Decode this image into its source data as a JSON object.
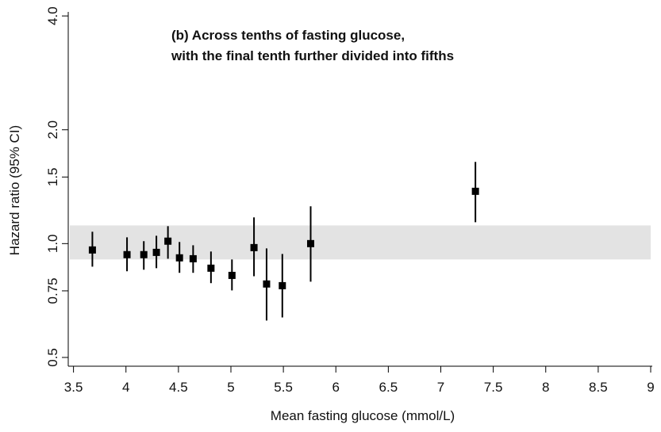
{
  "chart_data": {
    "type": "errorbar",
    "title": [
      "(b) Across tenths of fasting glucose,",
      "with the final tenth further divided into fifths"
    ],
    "xlabel": "Mean fasting glucose (mmol/L)",
    "ylabel": "Hazard ratio (95% CI)",
    "log_y": true,
    "xlim": [
      3.45,
      9
    ],
    "xticks": [
      3.5,
      4,
      4.5,
      5,
      5.5,
      6,
      6.5,
      7,
      7.5,
      8,
      8.5,
      9
    ],
    "ylim": [
      0.474,
      4.1
    ],
    "yticks": [
      0.5,
      0.75,
      {
        "value": 1,
        "label": "1.0"
      },
      1.5,
      {
        "value": 2,
        "label": "2.0"
      },
      {
        "value": 4,
        "label": "4.0"
      }
    ],
    "band": [
      0.908,
      1.117
    ],
    "band_color": "#dcdcdc",
    "series": [
      {
        "color": "#000000",
        "x": [
          3.68,
          4.01,
          4.17,
          4.29,
          4.4,
          4.51,
          4.64,
          4.81,
          5.01,
          5.22,
          5.34,
          5.49,
          5.76,
          7.33
        ],
        "values": [
          0.962,
          0.935,
          0.935,
          0.948,
          1.015,
          0.917,
          0.912,
          0.861,
          0.824,
          0.976,
          0.782,
          0.774,
          1.0,
          1.375
        ],
        "lower": [
          0.869,
          0.845,
          0.853,
          0.861,
          0.912,
          0.837,
          0.837,
          0.786,
          0.752,
          0.82,
          0.626,
          0.638,
          0.793,
          1.139
        ],
        "upper": [
          1.075,
          1.039,
          1.015,
          1.049,
          1.112,
          1.01,
          0.99,
          0.953,
          0.908,
          1.173,
          0.971,
          0.939,
          1.255,
          1.645
        ]
      }
    ]
  }
}
